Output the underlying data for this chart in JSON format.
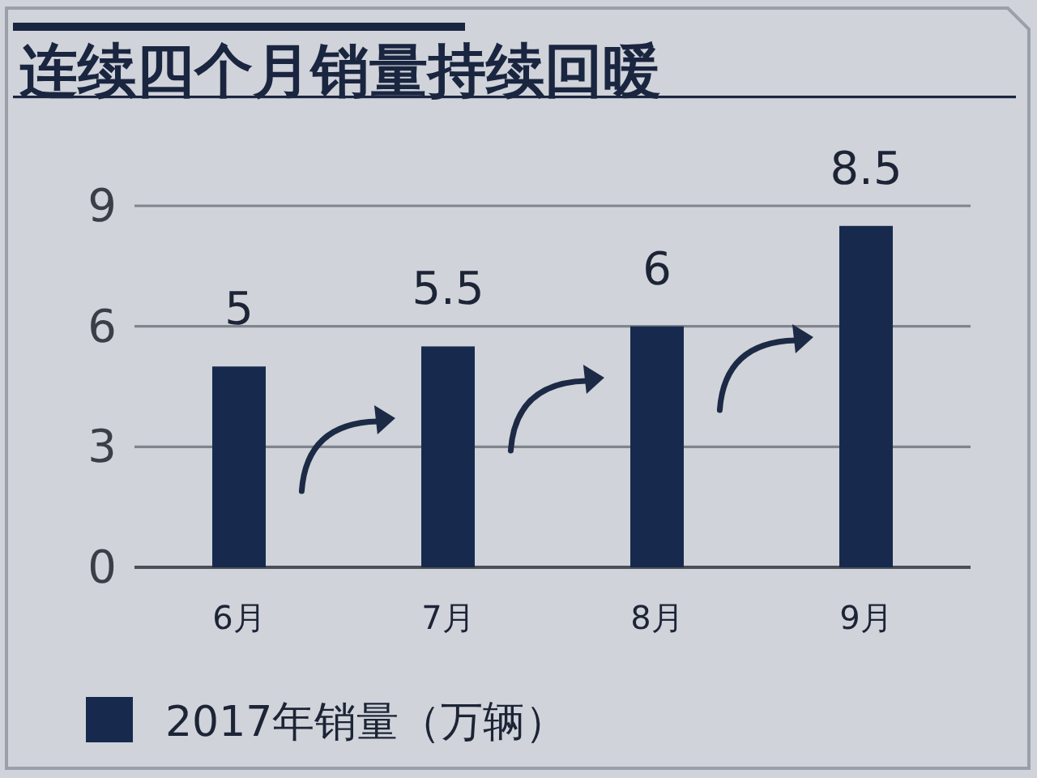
{
  "chart_data": {
    "type": "bar",
    "title": "连续四个月销量持续回暖",
    "categories": [
      "6月",
      "7月",
      "8月",
      "9月"
    ],
    "series": [
      {
        "name": "2017年销量（万辆）",
        "color": "#172a4e",
        "values": [
          5,
          5.5,
          6,
          8.5
        ]
      }
    ],
    "ylim": [
      0,
      9
    ],
    "yticks": [
      0,
      3,
      6,
      9
    ],
    "grid": "y",
    "data_labels": true,
    "legend": "bottom"
  }
}
